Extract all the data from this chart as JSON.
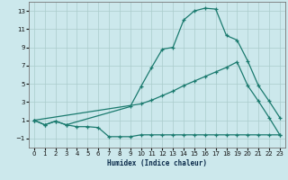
{
  "xlabel": "Humidex (Indice chaleur)",
  "background_color": "#cce8ec",
  "grid_color": "#aacccc",
  "line_color": "#1a7a6e",
  "xlim": [
    -0.5,
    23.5
  ],
  "ylim": [
    -2.0,
    14.0
  ],
  "xticks": [
    0,
    1,
    2,
    3,
    4,
    5,
    6,
    7,
    8,
    9,
    10,
    11,
    12,
    13,
    14,
    15,
    16,
    17,
    18,
    19,
    20,
    21,
    22,
    23
  ],
  "yticks": [
    -1,
    1,
    3,
    5,
    7,
    9,
    11,
    13
  ],
  "line_bottom_x": [
    0,
    1,
    2,
    3,
    4,
    5,
    6,
    7,
    8,
    9,
    10,
    11,
    12,
    13,
    14,
    15,
    16,
    17,
    18,
    19,
    20,
    21,
    22,
    23
  ],
  "line_bottom_y": [
    1.0,
    0.5,
    0.9,
    0.5,
    0.3,
    0.3,
    0.2,
    -0.8,
    -0.8,
    -0.8,
    -0.6,
    -0.6,
    -0.6,
    -0.6,
    -0.6,
    -0.6,
    -0.6,
    -0.6,
    -0.6,
    -0.6,
    -0.6,
    -0.6,
    -0.6,
    -0.6
  ],
  "line_mid_x": [
    0,
    10,
    11,
    12,
    13,
    14,
    15,
    16,
    17,
    18,
    19,
    20,
    21,
    22,
    23
  ],
  "line_mid_y": [
    1.0,
    2.8,
    3.2,
    3.7,
    4.2,
    4.8,
    5.3,
    5.8,
    6.3,
    6.8,
    7.4,
    4.8,
    3.1,
    1.3,
    -0.6
  ],
  "line_top_x": [
    0,
    1,
    2,
    3,
    9,
    10,
    11,
    12,
    13,
    14,
    15,
    16,
    17,
    18,
    19,
    20,
    21,
    22,
    23
  ],
  "line_top_y": [
    1.0,
    0.5,
    0.9,
    0.5,
    2.5,
    4.7,
    6.8,
    8.8,
    9.0,
    12.0,
    13.0,
    13.3,
    13.2,
    10.3,
    9.8,
    7.5,
    4.8,
    3.1,
    1.3
  ]
}
